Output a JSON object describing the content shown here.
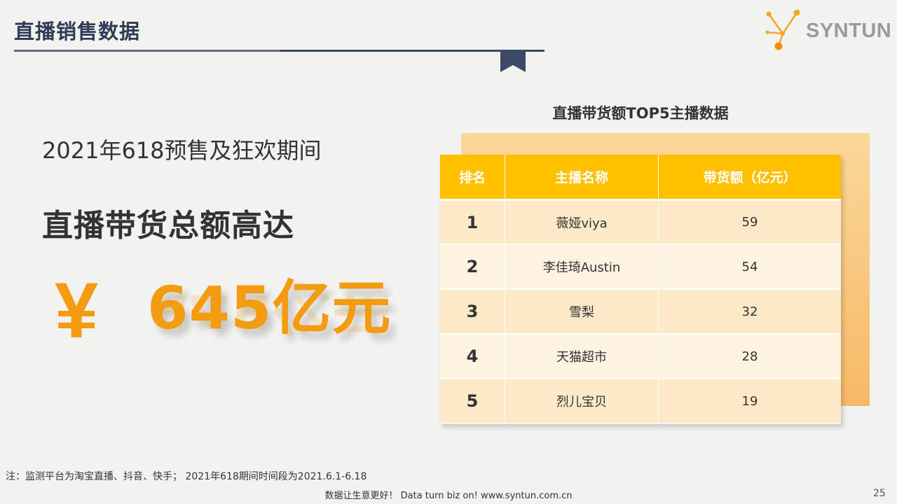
{
  "header": {
    "title": "直播销售数据",
    "brand": "SYNTUN"
  },
  "left": {
    "period": "2021年618预售及狂欢期间",
    "headline": "直播带货总额高达",
    "currency_symbol": "¥",
    "amount": "645亿元"
  },
  "table": {
    "title": "直播带货额TOP5主播数据",
    "columns": [
      "排名",
      "主播名称",
      "带货额（亿元）"
    ],
    "rows": [
      {
        "rank": "1",
        "name": "薇娅viya",
        "value": "59"
      },
      {
        "rank": "2",
        "name": "李佳琦Austin",
        "value": "54"
      },
      {
        "rank": "3",
        "name": "雪梨",
        "value": "32"
      },
      {
        "rank": "4",
        "name": "天猫超市",
        "value": "28"
      },
      {
        "rank": "5",
        "name": "烈儿宝贝",
        "value": "19"
      }
    ]
  },
  "footnote": "注：监测平台为淘宝直播、抖音、快手； 2021年618期间时间段为2021.6.1-6.18",
  "footer": "数据让生意更好！ Data turn biz on!  www.syntun.com.cn",
  "page_number": "25",
  "colors": {
    "accent": "#f39c12",
    "table_header": "#ffc000",
    "title_navy": "#2f3b57"
  },
  "icons": [
    "bookmark-icon",
    "syntun-logo-icon"
  ]
}
